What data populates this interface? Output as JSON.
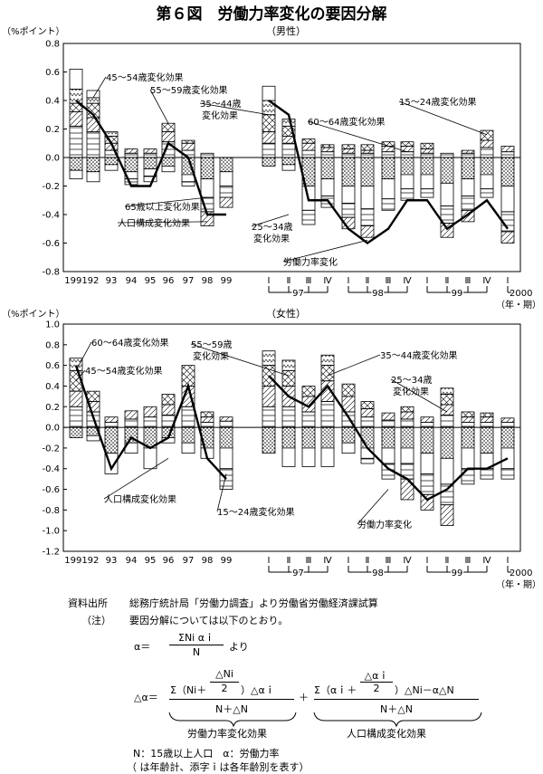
{
  "figure_title": "第６図　労働力率変化の要因分解",
  "unit_label": "（%ポイント）",
  "x_axis_unit": "（年・期）",
  "year_labels": [
    "1991",
    "92",
    "93",
    "94",
    "95",
    "96",
    "97",
    "98",
    "99"
  ],
  "quarter_labels": [
    "Ⅰ",
    "Ⅱ",
    "Ⅲ",
    "Ⅳ",
    "Ⅰ",
    "Ⅱ",
    "Ⅲ",
    "Ⅳ",
    "Ⅰ",
    "Ⅱ",
    "Ⅲ",
    "Ⅳ",
    "Ⅰ"
  ],
  "quarter_year_labels": [
    "97",
    "98",
    "99"
  ],
  "quarter_end_label": "2000",
  "patterns": {
    "age_15_24": "horizontal-stripes",
    "age_25_34": "diagonal-stripes",
    "age_35_44": "zigzag",
    "age_45_54": "crosshatch",
    "age_55_59": "diagonal-stripes",
    "age_60_64": "plain",
    "age_65_plus": "plain",
    "population_structure": "dots"
  },
  "chart_data": [
    {
      "type": "bar",
      "subtitle": "（男性）",
      "categories": [
        "1991",
        "92",
        "93",
        "94",
        "95",
        "96",
        "97",
        "98",
        "99",
        "97-Ⅰ",
        "97-Ⅱ",
        "97-Ⅲ",
        "97-Ⅳ",
        "98-Ⅰ",
        "98-Ⅱ",
        "98-Ⅲ",
        "98-Ⅳ",
        "99-Ⅰ",
        "99-Ⅱ",
        "99-Ⅲ",
        "99-Ⅳ",
        "2000-Ⅰ"
      ],
      "ylim": [
        -0.8,
        0.8
      ],
      "yticks": [
        -0.8,
        -0.6,
        -0.4,
        -0.2,
        0.0,
        0.2,
        0.4,
        0.6,
        0.8
      ],
      "bars": [
        {
          "pos": [
            0.22,
            0.1,
            0.06,
            0.1,
            0.14
          ],
          "neg": [
            -0.09,
            -0.06
          ]
        },
        {
          "pos": [
            0.18,
            0.1,
            0.1,
            0.04,
            0.05
          ],
          "neg": [
            -0.1,
            -0.07
          ]
        },
        {
          "pos": [
            0.05,
            0.05,
            0.05,
            0.03
          ],
          "neg": [
            -0.05,
            -0.04
          ]
        },
        {
          "pos": [
            0.03,
            0.03
          ],
          "neg": [
            -0.1,
            -0.05,
            -0.04
          ]
        },
        {
          "pos": [
            0.03,
            0.03
          ],
          "neg": [
            -0.08,
            -0.05,
            -0.04
          ]
        },
        {
          "pos": [
            0.11,
            0.07,
            0.06
          ],
          "neg": [
            -0.06,
            -0.04
          ]
        },
        {
          "pos": [
            0.05,
            0.05,
            0.02
          ],
          "neg": [
            -0.12,
            -0.05,
            -0.03
          ]
        },
        {
          "pos": [
            0.03
          ],
          "neg": [
            -0.15,
            -0.13,
            -0.1,
            -0.1
          ]
        },
        {
          "pos": [],
          "neg": [
            -0.1,
            -0.1,
            -0.08,
            -0.07
          ]
        },
        {
          "pos": [
            0.1,
            0.08,
            0.12,
            0.1,
            0.1
          ],
          "neg": [
            -0.06
          ]
        },
        {
          "pos": [
            0.1,
            0.05,
            0.07,
            0.05
          ],
          "neg": [
            -0.05,
            -0.04
          ]
        },
        {
          "pos": [
            0.05,
            0.05,
            0.03
          ],
          "neg": [
            -0.2,
            -0.17,
            -0.1
          ]
        },
        {
          "pos": [
            0.04,
            0.03,
            0.02
          ],
          "neg": [
            -0.15,
            -0.12,
            -0.08
          ]
        },
        {
          "pos": [
            0.03,
            0.03,
            0.03
          ],
          "neg": [
            -0.2,
            -0.12,
            -0.1,
            -0.08
          ]
        },
        {
          "pos": [
            0.03,
            0.02,
            0.04
          ],
          "neg": [
            -0.2,
            -0.16,
            -0.12,
            -0.08
          ]
        },
        {
          "pos": [
            0.04,
            0.04,
            0.03
          ],
          "neg": [
            -0.15,
            -0.14,
            -0.08
          ]
        },
        {
          "pos": [
            0.04,
            0.04,
            0.03
          ],
          "neg": [
            -0.12,
            -0.1,
            -0.08
          ]
        },
        {
          "pos": [
            0.03,
            0.03,
            0.04
          ],
          "neg": [
            -0.12,
            -0.1,
            -0.06
          ]
        },
        {
          "pos": [
            0.03
          ],
          "neg": [
            -0.18,
            -0.16,
            -0.12,
            -0.1
          ]
        },
        {
          "pos": [
            0.03,
            0.02
          ],
          "neg": [
            -0.15,
            -0.12,
            -0.1,
            -0.08
          ]
        },
        {
          "pos": [
            0.07,
            0.05,
            0.07
          ],
          "neg": [
            -0.12,
            -0.1,
            -0.06
          ]
        },
        {
          "pos": [
            0.04,
            0.04
          ],
          "neg": [
            -0.2,
            -0.18,
            -0.14,
            -0.08
          ]
        }
      ],
      "line": {
        "name": "労働力率変化",
        "values": [
          0.4,
          0.3,
          0.1,
          -0.2,
          -0.2,
          0.1,
          0.0,
          -0.4,
          -0.4,
          0.4,
          0.3,
          -0.3,
          -0.3,
          -0.5,
          -0.6,
          -0.5,
          -0.3,
          -0.3,
          -0.5,
          -0.4,
          -0.3,
          -0.5
        ]
      },
      "annotations": [
        {
          "text": "45～54歳変化効果",
          "at": [
            1,
            0.42
          ],
          "label_at": [
            117,
            89
          ],
          "anchor": "start"
        },
        {
          "text": "55～59歳変化効果",
          "at": [
            5,
            0.24
          ],
          "label_at": [
            166,
            103
          ],
          "anchor": "start"
        },
        {
          "text": "35～44歳",
          "at": [
            9,
            0.3
          ],
          "label_at": [
            221,
            118
          ],
          "anchor": "start"
        },
        {
          "text": "変化効果",
          "at": null,
          "label_at": [
            223,
            131
          ],
          "anchor": "start"
        },
        {
          "text": "60～64歳変化効果",
          "at": [
            16,
            0.04
          ],
          "label_at": [
            340,
            138
          ],
          "anchor": "start"
        },
        {
          "text": "15～24歳変化効果",
          "at": [
            20,
            0.16
          ],
          "label_at": [
            441,
            116
          ],
          "anchor": "start"
        },
        {
          "text": "65歳以上変化効果",
          "at": [
            7,
            -0.28
          ],
          "label_at": [
            138,
            232
          ],
          "anchor": "start"
        },
        {
          "text": "人口構成変化効果",
          "at": [
            7,
            -0.45
          ],
          "label_at": [
            130,
            250
          ],
          "anchor": "start"
        },
        {
          "text": "25～34歳",
          "at": [
            10,
            -0.4
          ],
          "label_at": [
            278,
            254
          ],
          "anchor": "start"
        },
        {
          "text": "変化効果",
          "at": null,
          "label_at": [
            280,
            267
          ],
          "anchor": "start"
        },
        {
          "text": "労働力率変化",
          "at": [
            14,
            -0.58
          ],
          "label_at": [
            313,
            293
          ],
          "anchor": "start"
        }
      ]
    },
    {
      "type": "bar",
      "subtitle": "（女性）",
      "categories": [
        "1991",
        "92",
        "93",
        "94",
        "95",
        "96",
        "97",
        "98",
        "99",
        "97-Ⅰ",
        "97-Ⅱ",
        "97-Ⅲ",
        "97-Ⅳ",
        "98-Ⅰ",
        "98-Ⅱ",
        "98-Ⅲ",
        "98-Ⅳ",
        "99-Ⅰ",
        "99-Ⅱ",
        "99-Ⅲ",
        "99-Ⅳ",
        "2000-Ⅰ"
      ],
      "ylim": [
        -1.2,
        1.0
      ],
      "yticks": [
        -1.2,
        -1.0,
        -0.8,
        -0.6,
        -0.4,
        -0.2,
        0.0,
        0.2,
        0.4,
        0.6,
        0.8,
        1.0
      ],
      "bars": [
        {
          "pos": [
            0.2,
            0.15,
            0.2,
            0.12
          ],
          "neg": [
            -0.1
          ]
        },
        {
          "pos": [
            0.15,
            0.1,
            0.1
          ],
          "neg": [
            -0.08,
            -0.05
          ]
        },
        {
          "pos": [
            0.05,
            0.05
          ],
          "neg": [
            -0.25,
            -0.2
          ]
        },
        {
          "pos": [
            0.08,
            0.08
          ],
          "neg": [
            -0.15,
            -0.1
          ]
        },
        {
          "pos": [
            0.1,
            0.1
          ],
          "neg": [
            -0.2,
            -0.2
          ]
        },
        {
          "pos": [
            0.12,
            0.1,
            0.1
          ],
          "neg": [
            -0.1,
            -0.05
          ]
        },
        {
          "pos": [
            0.2,
            0.2,
            0.2
          ],
          "neg": [
            -0.15,
            -0.1
          ]
        },
        {
          "pos": [
            0.05,
            0.05,
            0.05
          ],
          "neg": [
            -0.2,
            -0.1
          ]
        },
        {
          "pos": [
            0.06,
            0.04
          ],
          "neg": [
            -0.2,
            -0.2,
            -0.2
          ]
        },
        {
          "pos": [
            0.2,
            0.2,
            0.2,
            0.14
          ],
          "neg": [
            -0.25
          ]
        },
        {
          "pos": [
            0.2,
            0.2,
            0.15,
            0.1
          ],
          "neg": [
            -0.2,
            -0.18
          ]
        },
        {
          "pos": [
            0.15,
            0.15,
            0.1
          ],
          "neg": [
            -0.2,
            -0.18
          ]
        },
        {
          "pos": [
            0.25,
            0.2,
            0.15,
            0.1
          ],
          "neg": [
            -0.2,
            -0.18
          ]
        },
        {
          "pos": [
            0.15,
            0.15,
            0.12
          ],
          "neg": [
            -0.15,
            -0.1
          ]
        },
        {
          "pos": [
            0.1,
            0.08,
            0.07
          ],
          "neg": [
            -0.2,
            -0.1,
            -0.05
          ]
        },
        {
          "pos": [
            0.07,
            0.07
          ],
          "neg": [
            -0.2,
            -0.15,
            -0.15
          ]
        },
        {
          "pos": [
            0.08,
            0.07,
            0.05
          ],
          "neg": [
            -0.2,
            -0.15,
            -0.15,
            -0.2
          ]
        },
        {
          "pos": [
            0.05,
            0.05
          ],
          "neg": [
            -0.25,
            -0.2,
            -0.2,
            -0.15
          ]
        },
        {
          "pos": [
            0.12,
            0.1,
            0.1,
            0.06
          ],
          "neg": [
            -0.3,
            -0.25,
            -0.2,
            -0.2
          ]
        },
        {
          "pos": [
            0.05,
            0.05,
            0.05
          ],
          "neg": [
            -0.2,
            -0.2,
            -0.15
          ]
        },
        {
          "pos": [
            0.05,
            0.05,
            0.04
          ],
          "neg": [
            -0.25,
            -0.15,
            -0.1
          ]
        },
        {
          "pos": [
            0.05,
            0.04
          ],
          "neg": [
            -0.2,
            -0.2,
            -0.1
          ]
        }
      ],
      "line": {
        "name": "労働力率変化",
        "values": [
          0.6,
          0.1,
          -0.4,
          -0.1,
          -0.2,
          -0.1,
          0.4,
          -0.3,
          -0.5,
          0.5,
          0.3,
          0.2,
          0.4,
          0.1,
          -0.2,
          -0.4,
          -0.5,
          -0.7,
          -0.6,
          -0.4,
          -0.4,
          -0.3
        ]
      },
      "annotations": [
        {
          "text": "60～64歳変化効果",
          "at": [
            0,
            0.55
          ],
          "label_at": [
            101,
            382
          ],
          "anchor": "start"
        },
        {
          "text": "45～54歳変化効果",
          "at": [
            0,
            0.45
          ],
          "label_at": [
            94,
            413
          ],
          "anchor": "start"
        },
        {
          "text": "55～59歳",
          "at": [
            10,
            0.5
          ],
          "label_at": [
            211,
            384
          ],
          "anchor": "start"
        },
        {
          "text": "変化効果",
          "at": null,
          "label_at": [
            213,
            397
          ],
          "anchor": "start"
        },
        {
          "text": "35～44歳変化効果",
          "at": [
            12,
            0.5
          ],
          "label_at": [
            420,
            396
          ],
          "anchor": "start"
        },
        {
          "text": "25～34歳",
          "at": [
            18,
            0.15
          ],
          "label_at": [
            432,
            423
          ],
          "anchor": "start"
        },
        {
          "text": "変化効果",
          "at": null,
          "label_at": [
            434,
            436
          ],
          "anchor": "start"
        },
        {
          "text": "人口構成変化効果",
          "at": [
            5,
            -0.3
          ],
          "label_at": [
            115,
            555
          ],
          "anchor": "start"
        },
        {
          "text": "15～24歳変化効果",
          "at": [
            8,
            -0.45
          ],
          "label_at": [
            240,
            569
          ],
          "anchor": "start"
        },
        {
          "text": "労働力率変化",
          "at": [
            15,
            -0.6
          ],
          "label_at": [
            395,
            583
          ],
          "anchor": "start"
        }
      ]
    }
  ],
  "notes": {
    "source_label": "資料出所",
    "source_text": "総務庁統計局「労働力調査」より労働省労働経済課試算",
    "note_label": "（注）",
    "note_text": "要因分解については以下のとおり。",
    "f1_lhs": "α＝",
    "f1_num": "ΣNi αｉ",
    "f1_den": "N",
    "f1_tail": "より",
    "f2_lhs": "△α＝",
    "f2_num_a": "Σ（Ni＋",
    "f2_num_b": "△Ni",
    "f2_num_c": "2",
    "f2_num_d": "）△αｉ",
    "f2_den": "N＋△N",
    "f2_plus": "＋",
    "f2_num2_a": "Σ（αｉ＋",
    "f2_num2_b": "△αｉ",
    "f2_num2_c": "2",
    "f2_num2_d": "）△Ni－α△N",
    "f2_den2": "N＋△N",
    "brace1_label": "労働力率変化効果",
    "brace2_label": "人口構成変化効果",
    "def_line": "N：15歳以上人口　α：労働力率",
    "def_line2": "（ は年齢計、添字ｉは各年齢別を表す）"
  }
}
